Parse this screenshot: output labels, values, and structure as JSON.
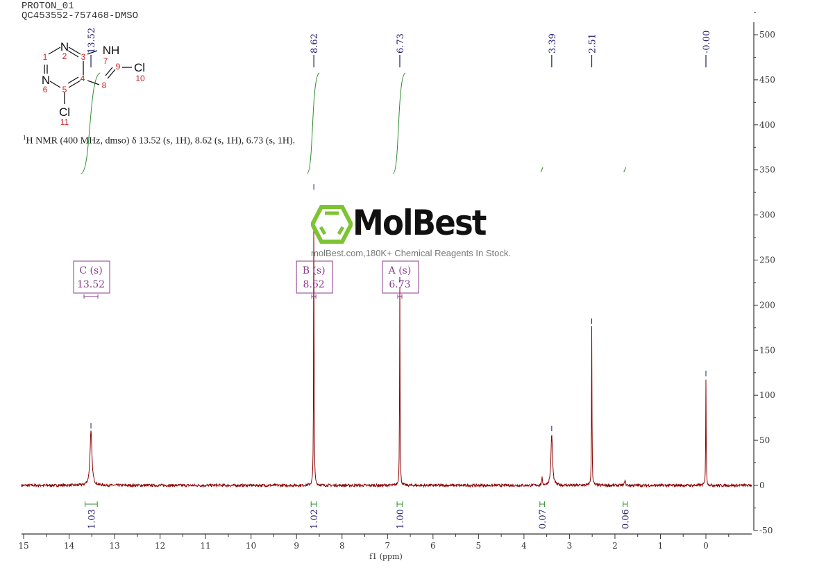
{
  "header": {
    "line1": "PROTON_01",
    "line2": "QC453552-757468-DMSO"
  },
  "summary": {
    "sup": "1",
    "text": "H NMR (400 MHz, dmso) δ 13.52 (s, 1H), 8.62 (s, 1H), 6.73 (s, 1H)."
  },
  "molecule": {
    "atoms": {
      "n2": "N",
      "n6": "N",
      "nh": "NH",
      "cl10": "Cl",
      "cl11": "Cl"
    },
    "numbers": [
      "1",
      "2",
      "3",
      "4",
      "5",
      "6",
      "7",
      "8",
      "9",
      "10",
      "11"
    ]
  },
  "watermark": {
    "brand": "MolBest",
    "tagline": "molBest.com,180K+ Chemical Reagents In Stock.",
    "logo_color": "#7cc432"
  },
  "chart_data": {
    "type": "line",
    "xlabel": "f1 (ppm)",
    "xlim": [
      15,
      -1
    ],
    "ylim": [
      -50,
      520
    ],
    "x_ticks": [
      "15",
      "14",
      "13",
      "12",
      "11",
      "10",
      "9",
      "8",
      "7",
      "6",
      "5",
      "4",
      "3",
      "2",
      "1",
      "0"
    ],
    "y_ticks": [
      "500",
      "450",
      "400",
      "350",
      "300",
      "250",
      "200",
      "150",
      "100",
      "50",
      "0",
      "-50"
    ],
    "peaks": [
      {
        "ppm": 13.52,
        "height": 60,
        "label": "13.52"
      },
      {
        "ppm": 8.62,
        "height": 325,
        "label": "8.62"
      },
      {
        "ppm": 6.73,
        "height": 222,
        "label": "6.73"
      },
      {
        "ppm": 3.39,
        "height": 57,
        "label": "3.39"
      },
      {
        "ppm": 2.51,
        "height": 176,
        "label": "2.51"
      },
      {
        "ppm": 0.0,
        "height": 118,
        "label": "-0.00"
      }
    ],
    "minor_peaks": [
      {
        "ppm": 3.6,
        "height": 8
      },
      {
        "ppm": 1.78,
        "height": 7
      }
    ],
    "multiplets": [
      {
        "letter": "C (s)",
        "shift": "13.52",
        "ppm": 13.52
      },
      {
        "letter": "B (s)",
        "shift": "8.62",
        "ppm": 8.62
      },
      {
        "letter": "A (s)",
        "shift": "6.73",
        "ppm": 6.73
      }
    ],
    "integrals": [
      {
        "from": 13.65,
        "to": 13.38,
        "value": "1.03",
        "big": true
      },
      {
        "from": 8.68,
        "to": 8.56,
        "value": "1.02",
        "big": true
      },
      {
        "from": 6.79,
        "to": 6.67,
        "value": "1.00",
        "big": true
      },
      {
        "from": 3.65,
        "to": 3.55,
        "value": "0.07",
        "big": false
      },
      {
        "from": 1.82,
        "to": 1.73,
        "value": "0.06",
        "big": false
      }
    ],
    "colors": {
      "spectrum": "#8b0000",
      "integral": "#2e8b2e",
      "peak_label": "#1a1a6e",
      "multiplet": "#8b3a8b",
      "axis": "#333333"
    }
  }
}
